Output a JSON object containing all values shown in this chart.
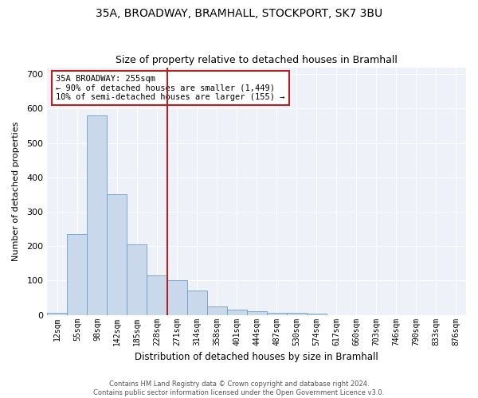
{
  "title": "35A, BROADWAY, BRAMHALL, STOCKPORT, SK7 3BU",
  "subtitle": "Size of property relative to detached houses in Bramhall",
  "xlabel": "Distribution of detached houses by size in Bramhall",
  "ylabel": "Number of detached properties",
  "bar_color": "#c9d9eb",
  "bar_edge_color": "#6b9ec8",
  "highlight_color": "#b22222",
  "background_color": "#eef2f8",
  "categories": [
    "12sqm",
    "55sqm",
    "98sqm",
    "142sqm",
    "185sqm",
    "228sqm",
    "271sqm",
    "314sqm",
    "358sqm",
    "401sqm",
    "444sqm",
    "487sqm",
    "530sqm",
    "574sqm",
    "617sqm",
    "660sqm",
    "703sqm",
    "746sqm",
    "790sqm",
    "833sqm",
    "876sqm"
  ],
  "values": [
    5,
    235,
    580,
    350,
    205,
    115,
    100,
    70,
    25,
    15,
    10,
    5,
    5,
    3,
    0,
    0,
    0,
    0,
    0,
    0,
    0
  ],
  "property_line_x": 6.0,
  "annotation_text": "35A BROADWAY: 255sqm\n← 90% of detached houses are smaller (1,449)\n10% of semi-detached houses are larger (155) →",
  "ylim": [
    0,
    720
  ],
  "yticks": [
    0,
    100,
    200,
    300,
    400,
    500,
    600,
    700
  ],
  "footer_line1": "Contains HM Land Registry data © Crown copyright and database right 2024.",
  "footer_line2": "Contains public sector information licensed under the Open Government Licence v3.0."
}
